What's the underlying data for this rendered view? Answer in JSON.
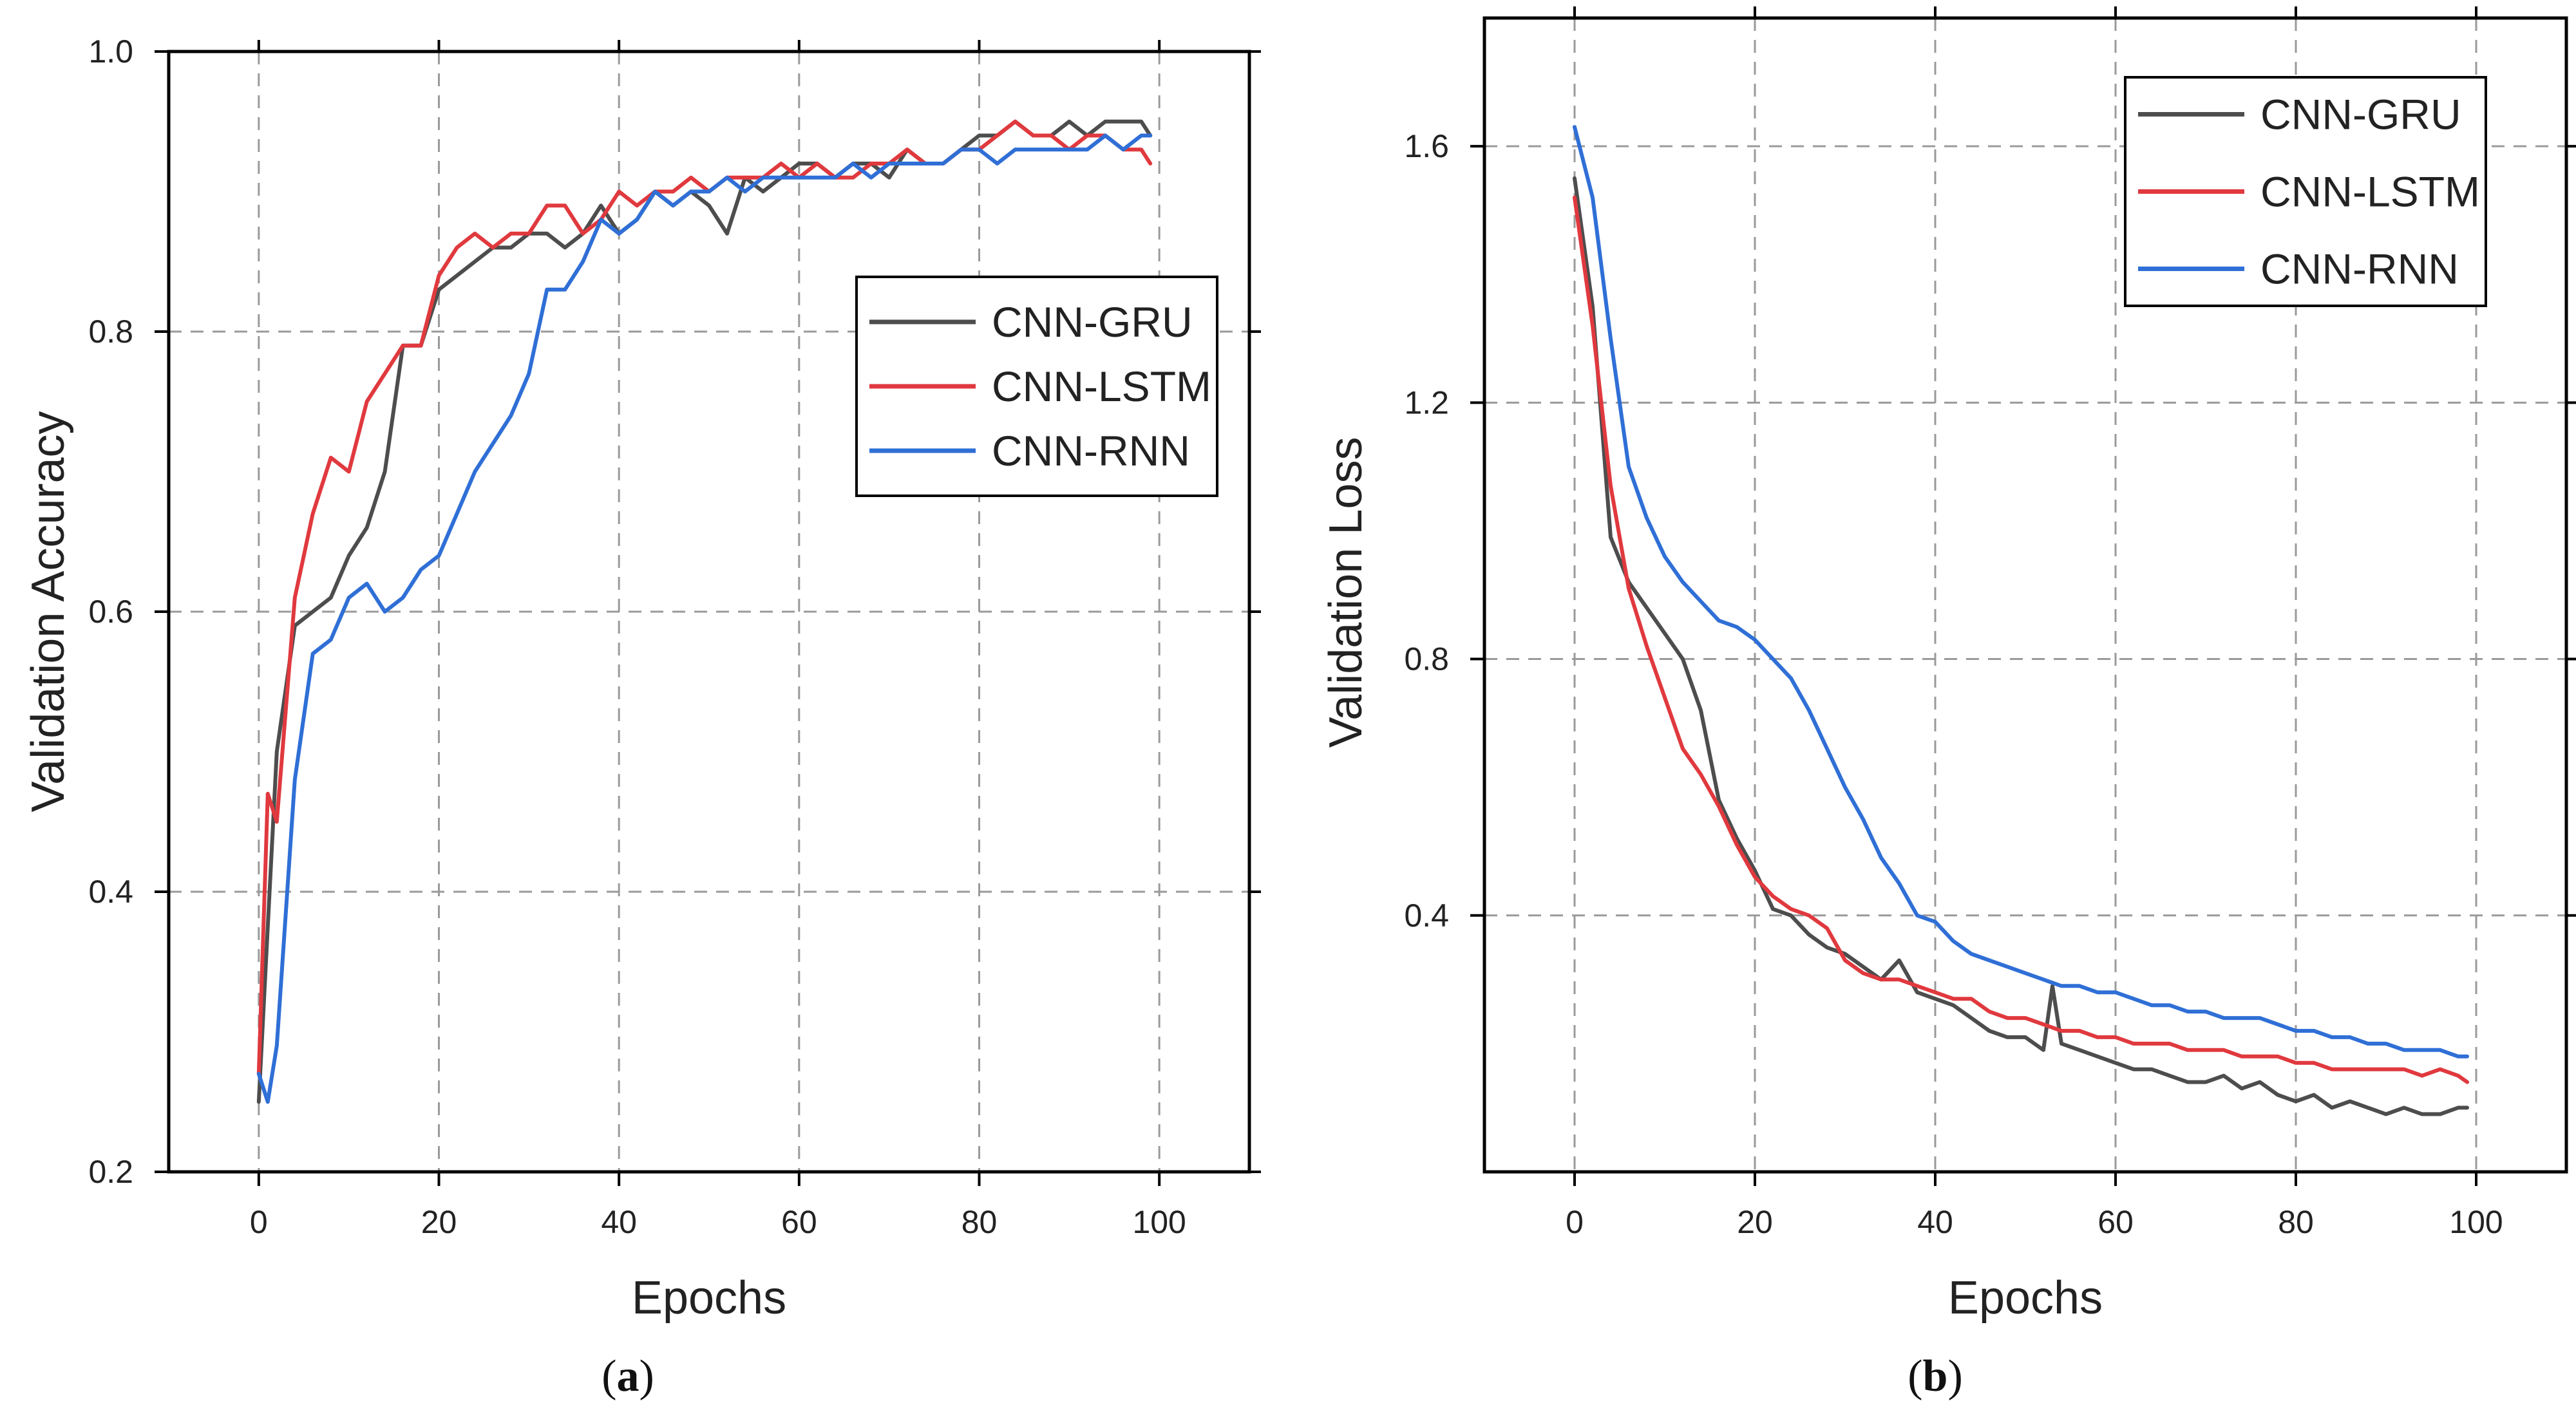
{
  "chart_data": [
    {
      "type": "line",
      "panel_label": "a",
      "xlabel": "Epochs",
      "ylabel": "Validation Accuracy",
      "xlim": [
        -10,
        110
      ],
      "ylim": [
        0.2,
        1.0
      ],
      "xticks": [
        0,
        20,
        40,
        60,
        80,
        100
      ],
      "yticks": [
        0.2,
        0.4,
        0.6,
        0.8,
        1.0
      ],
      "ytick_labels": [
        "0.2",
        "0.4",
        "0.6",
        "0.8",
        "1.0"
      ],
      "grid": true,
      "legend_position": "middle-right",
      "series": [
        {
          "name": "CNN-GRU",
          "color": "#4d4d4d",
          "x": [
            0,
            2,
            4,
            6,
            8,
            10,
            12,
            14,
            16,
            18,
            20,
            22,
            24,
            26,
            28,
            30,
            32,
            34,
            36,
            38,
            40,
            42,
            44,
            46,
            48,
            50,
            52,
            54,
            56,
            58,
            60,
            62,
            64,
            66,
            68,
            70,
            72,
            74,
            76,
            78,
            80,
            82,
            84,
            86,
            88,
            90,
            92,
            94,
            96,
            98,
            99
          ],
          "y": [
            0.25,
            0.5,
            0.59,
            0.6,
            0.61,
            0.64,
            0.66,
            0.7,
            0.79,
            0.79,
            0.83,
            0.84,
            0.85,
            0.86,
            0.86,
            0.87,
            0.87,
            0.86,
            0.87,
            0.89,
            0.87,
            0.88,
            0.9,
            0.89,
            0.9,
            0.89,
            0.87,
            0.91,
            0.9,
            0.91,
            0.92,
            0.92,
            0.91,
            0.92,
            0.92,
            0.91,
            0.93,
            0.92,
            0.92,
            0.93,
            0.94,
            0.94,
            0.95,
            0.94,
            0.94,
            0.95,
            0.94,
            0.95,
            0.95,
            0.95,
            0.94
          ]
        },
        {
          "name": "CNN-LSTM",
          "color": "#e0393e",
          "x": [
            0,
            1,
            2,
            4,
            6,
            8,
            10,
            12,
            14,
            16,
            18,
            20,
            22,
            24,
            26,
            28,
            30,
            32,
            34,
            36,
            38,
            40,
            42,
            44,
            46,
            48,
            50,
            52,
            54,
            56,
            58,
            60,
            62,
            64,
            66,
            68,
            70,
            72,
            74,
            76,
            78,
            80,
            82,
            84,
            86,
            88,
            90,
            92,
            94,
            96,
            98,
            99
          ],
          "y": [
            0.27,
            0.47,
            0.45,
            0.61,
            0.67,
            0.71,
            0.7,
            0.75,
            0.77,
            0.79,
            0.79,
            0.84,
            0.86,
            0.87,
            0.86,
            0.87,
            0.87,
            0.89,
            0.89,
            0.87,
            0.88,
            0.9,
            0.89,
            0.9,
            0.9,
            0.91,
            0.9,
            0.91,
            0.91,
            0.91,
            0.92,
            0.91,
            0.92,
            0.91,
            0.91,
            0.92,
            0.92,
            0.93,
            0.92,
            0.92,
            0.93,
            0.93,
            0.94,
            0.95,
            0.94,
            0.94,
            0.93,
            0.94,
            0.94,
            0.93,
            0.93,
            0.92
          ]
        },
        {
          "name": "CNN-RNN",
          "color": "#2f6fd6",
          "x": [
            0,
            1,
            2,
            4,
            6,
            8,
            10,
            12,
            14,
            16,
            18,
            20,
            22,
            24,
            26,
            28,
            30,
            32,
            34,
            36,
            38,
            40,
            42,
            44,
            46,
            48,
            50,
            52,
            54,
            56,
            58,
            60,
            62,
            64,
            66,
            68,
            70,
            72,
            74,
            76,
            78,
            80,
            82,
            84,
            86,
            88,
            90,
            92,
            94,
            96,
            98,
            99
          ],
          "y": [
            0.27,
            0.25,
            0.29,
            0.48,
            0.57,
            0.58,
            0.61,
            0.62,
            0.6,
            0.61,
            0.63,
            0.64,
            0.67,
            0.7,
            0.72,
            0.74,
            0.77,
            0.83,
            0.83,
            0.85,
            0.88,
            0.87,
            0.88,
            0.9,
            0.89,
            0.9,
            0.9,
            0.91,
            0.9,
            0.91,
            0.91,
            0.91,
            0.91,
            0.91,
            0.92,
            0.91,
            0.92,
            0.92,
            0.92,
            0.92,
            0.93,
            0.93,
            0.92,
            0.93,
            0.93,
            0.93,
            0.93,
            0.93,
            0.94,
            0.93,
            0.94,
            0.94
          ]
        }
      ]
    },
    {
      "type": "line",
      "panel_label": "b",
      "xlabel": "Epochs",
      "ylabel": "Validation Loss",
      "xlim": [
        -10,
        110
      ],
      "ylim": [
        0.0,
        1.8
      ],
      "xticks": [
        0,
        20,
        40,
        60,
        80,
        100
      ],
      "yticks": [
        0.4,
        0.8,
        1.2,
        1.6
      ],
      "ytick_labels": [
        "0.4",
        "0.8",
        "1.2",
        "1.6"
      ],
      "grid": true,
      "legend_position": "top-right",
      "series": [
        {
          "name": "CNN-GRU",
          "color": "#4d4d4d",
          "x": [
            0,
            2,
            4,
            6,
            8,
            10,
            12,
            14,
            16,
            18,
            20,
            22,
            24,
            26,
            28,
            30,
            32,
            34,
            36,
            38,
            40,
            42,
            44,
            46,
            48,
            50,
            52,
            53,
            54,
            56,
            58,
            60,
            62,
            64,
            66,
            68,
            70,
            72,
            74,
            76,
            78,
            80,
            82,
            84,
            86,
            88,
            90,
            92,
            94,
            96,
            98,
            99
          ],
          "y": [
            1.55,
            1.35,
            0.99,
            0.92,
            0.88,
            0.84,
            0.8,
            0.72,
            0.58,
            0.52,
            0.47,
            0.41,
            0.4,
            0.37,
            0.35,
            0.34,
            0.32,
            0.3,
            0.33,
            0.28,
            0.27,
            0.26,
            0.24,
            0.22,
            0.21,
            0.21,
            0.19,
            0.29,
            0.2,
            0.19,
            0.18,
            0.17,
            0.16,
            0.16,
            0.15,
            0.14,
            0.14,
            0.15,
            0.13,
            0.14,
            0.12,
            0.11,
            0.12,
            0.1,
            0.11,
            0.1,
            0.09,
            0.1,
            0.09,
            0.09,
            0.1,
            0.1
          ]
        },
        {
          "name": "CNN-LSTM",
          "color": "#e0393e",
          "x": [
            0,
            2,
            4,
            6,
            8,
            10,
            12,
            14,
            16,
            18,
            20,
            22,
            24,
            26,
            28,
            30,
            32,
            34,
            36,
            38,
            40,
            42,
            44,
            46,
            48,
            50,
            52,
            54,
            56,
            58,
            60,
            62,
            64,
            66,
            68,
            70,
            72,
            74,
            76,
            78,
            80,
            82,
            84,
            86,
            88,
            90,
            92,
            94,
            96,
            98,
            99
          ],
          "y": [
            1.52,
            1.32,
            1.07,
            0.91,
            0.82,
            0.74,
            0.66,
            0.62,
            0.57,
            0.51,
            0.46,
            0.43,
            0.41,
            0.4,
            0.38,
            0.33,
            0.31,
            0.3,
            0.3,
            0.29,
            0.28,
            0.27,
            0.27,
            0.25,
            0.24,
            0.24,
            0.23,
            0.22,
            0.22,
            0.21,
            0.21,
            0.2,
            0.2,
            0.2,
            0.19,
            0.19,
            0.19,
            0.18,
            0.18,
            0.18,
            0.17,
            0.17,
            0.16,
            0.16,
            0.16,
            0.16,
            0.16,
            0.15,
            0.16,
            0.15,
            0.14
          ]
        },
        {
          "name": "CNN-RNN",
          "color": "#2f6fd6",
          "x": [
            0,
            2,
            4,
            6,
            8,
            10,
            12,
            14,
            16,
            18,
            20,
            22,
            24,
            26,
            28,
            30,
            32,
            34,
            36,
            38,
            40,
            42,
            44,
            46,
            48,
            50,
            52,
            54,
            56,
            58,
            60,
            62,
            64,
            66,
            68,
            70,
            72,
            74,
            76,
            78,
            80,
            82,
            84,
            86,
            88,
            90,
            92,
            94,
            96,
            98,
            99
          ],
          "y": [
            1.63,
            1.52,
            1.3,
            1.1,
            1.02,
            0.96,
            0.92,
            0.89,
            0.86,
            0.85,
            0.83,
            0.8,
            0.77,
            0.72,
            0.66,
            0.6,
            0.55,
            0.49,
            0.45,
            0.4,
            0.39,
            0.36,
            0.34,
            0.33,
            0.32,
            0.31,
            0.3,
            0.29,
            0.29,
            0.28,
            0.28,
            0.27,
            0.26,
            0.26,
            0.25,
            0.25,
            0.24,
            0.24,
            0.24,
            0.23,
            0.22,
            0.22,
            0.21,
            0.21,
            0.2,
            0.2,
            0.19,
            0.19,
            0.19,
            0.18,
            0.18
          ]
        }
      ]
    }
  ]
}
